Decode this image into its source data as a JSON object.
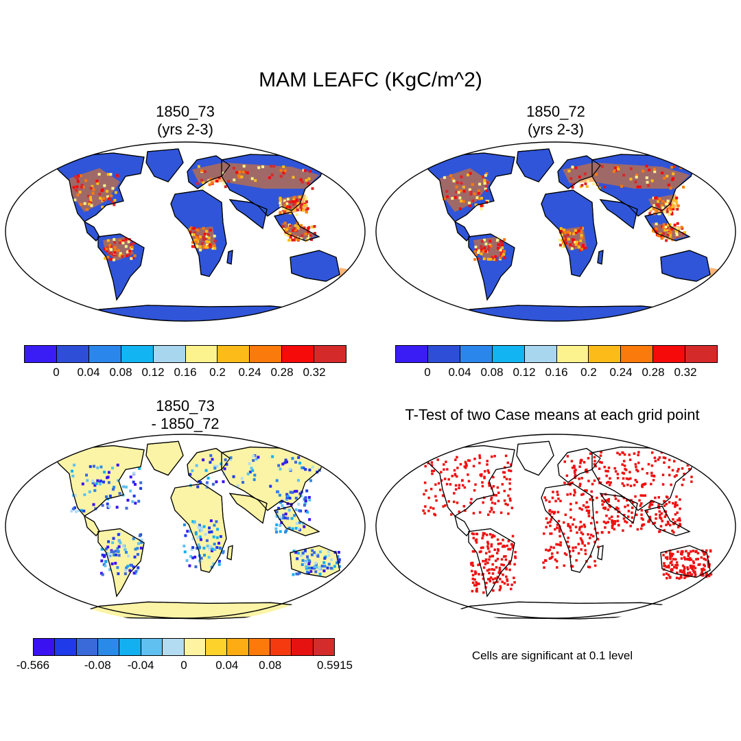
{
  "title": "MAM LEAFC (KgC/m^2)",
  "panels": {
    "top_left": {
      "title_line1": "1850_73",
      "title_line2": "(yrs 2-3)"
    },
    "top_right": {
      "title_line1": "1850_72",
      "title_line2": "(yrs 2-3)"
    },
    "bottom_left": {
      "title_line1": "1850_73",
      "title_line2": "- 1850_72"
    },
    "bottom_right": {
      "title_line1": "T-Test of two Case means at each grid point"
    }
  },
  "colorbars": {
    "absolute": {
      "colors": [
        "#3a1cf5",
        "#2e4ed8",
        "#2b86eb",
        "#12b5f2",
        "#a8d6ef",
        "#fdf38e",
        "#fdbb1a",
        "#fb7a0c",
        "#f60a0a",
        "#d52a2a"
      ],
      "labels": [
        "0",
        "0.04",
        "0.08",
        "0.12",
        "0.16",
        "0.2",
        "0.24",
        "0.28",
        "0.32"
      ]
    },
    "difference": {
      "colors": [
        "#3a12f2",
        "#1f3ae8",
        "#3a6ad9",
        "#2a8ae8",
        "#12b0f0",
        "#60c0ef",
        "#b3dcf2",
        "#fdf3a0",
        "#fdd22a",
        "#fdac14",
        "#fb7a0a",
        "#f53a10",
        "#e61212",
        "#d42c2c"
      ],
      "labels": [
        "-0.566",
        "-0.08",
        "-0.04",
        "0",
        "0.04",
        "0.08",
        "0.5915"
      ]
    }
  },
  "significance_note": "Cells are significant at 0.1 level",
  "map_colors": {
    "land_absolute": "#3055d8",
    "land_difference": "#fbf4a6",
    "significant": "#ee1111",
    "coast": "#000000"
  }
}
